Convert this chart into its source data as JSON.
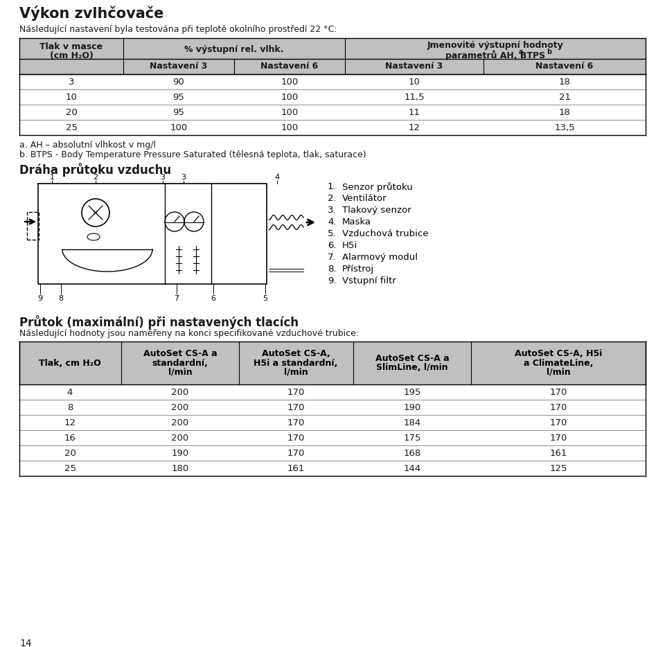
{
  "title": "Výkon zvlhčovače",
  "subtitle": "Následující nastavení byla testována při teplotě okolního prostředí 22 °C:",
  "t1_col0_line1": "Tlak v masce",
  "t1_col0_line2": "(cm H₂O)",
  "t1_span12": "% výstupní rel. vlhk.",
  "t1_span34_line1": "Jmenovité výstupní hodnoty",
  "t1_span34_line2a": "parametrů AH",
  "t1_span34_sup_a": "a",
  "t1_span34_line2b": ", BTPS",
  "t1_span34_sup_b": "b",
  "t1_subheaders": [
    "Nastavení 3",
    "Nastavení 6",
    "Nastavení 3",
    "Nastavení 6"
  ],
  "table1_data": [
    [
      "3",
      "90",
      "100",
      "10",
      "18"
    ],
    [
      "10",
      "95",
      "100",
      "11,5",
      "21"
    ],
    [
      "20",
      "95",
      "100",
      "11",
      "18"
    ],
    [
      "25",
      "100",
      "100",
      "12",
      "13,5"
    ]
  ],
  "note_a": "a. AH – absolutní vlhkost v mg/l",
  "note_b": "b. BTPS - Body Temperature Pressure Saturated (tělesná teplota, tlak, saturace)",
  "diagram_title": "Dráha průtoku vzduchu",
  "legend_items": [
    [
      "1.",
      "Senzor průtoku"
    ],
    [
      "2.",
      "Ventilátor"
    ],
    [
      "3.",
      "Tlakový senzor"
    ],
    [
      "4.",
      "Maska"
    ],
    [
      "5.",
      "Vzduchová trubice"
    ],
    [
      "6.",
      "H5i"
    ],
    [
      "7.",
      "Alarmový modul"
    ],
    [
      "8.",
      "Přístroj"
    ],
    [
      "9.",
      "Vstupní filtr"
    ]
  ],
  "section2_title": "Průtok (maximální) při nastavených tlacích",
  "section2_subtitle": "Následující hodnoty jsou naměřeny na konci specifikované vzduchové trubice:",
  "t2_h0_lines": [
    "Tlak, cm H₂O"
  ],
  "t2_h1_lines": [
    "AutoSet CS-A a",
    "standardní,",
    "l/min"
  ],
  "t2_h2_lines": [
    "AutoSet CS-A,",
    "H5i a standardní,",
    "l/min"
  ],
  "t2_h3_lines": [
    "AutoSet CS-A a",
    "SlimLine, l/min"
  ],
  "t2_h4_lines": [
    "AutoSet CS-A, H5i",
    "a ClimateLine,",
    "l/min"
  ],
  "table2_data": [
    [
      "4",
      "200",
      "170",
      "195",
      "170"
    ],
    [
      "8",
      "200",
      "170",
      "190",
      "170"
    ],
    [
      "12",
      "200",
      "170",
      "184",
      "170"
    ],
    [
      "16",
      "200",
      "170",
      "175",
      "170"
    ],
    [
      "20",
      "190",
      "170",
      "168",
      "161"
    ],
    [
      "25",
      "180",
      "161",
      "144",
      "125"
    ]
  ],
  "page_number": "14",
  "bg_color": "#ffffff",
  "text_color": "#1a1a1a",
  "header_bg": "#c0c0c0",
  "row_line_color": "#999999"
}
